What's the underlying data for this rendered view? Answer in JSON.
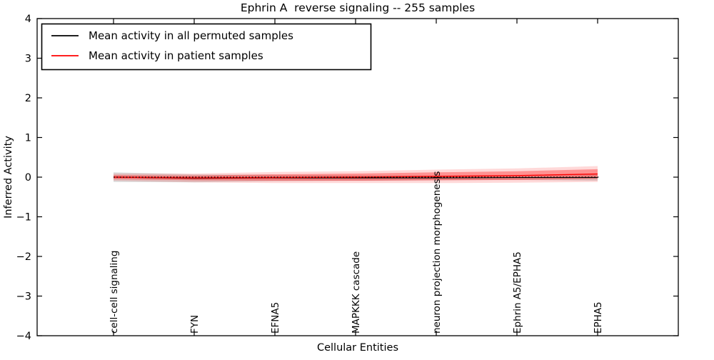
{
  "figure": {
    "title": "Ephrin A  reverse signaling -- 255 samples",
    "xlabel": "Cellular Entities",
    "ylabel": "Inferred Activity"
  },
  "legend": {
    "position": "upper left",
    "entries": [
      {
        "label": "Mean activity in all permuted samples",
        "color": "#000000"
      },
      {
        "label": "Mean activity in patient samples",
        "color": "#ff0000"
      }
    ]
  },
  "chart_data": {
    "type": "line",
    "title": "Ephrin A  reverse signaling -- 255 samples",
    "xlabel": "Cellular Entities",
    "ylabel": "Inferred Activity",
    "ylim": [
      -4,
      4
    ],
    "yticks": [
      4,
      3,
      2,
      1,
      0,
      -1,
      -2,
      -3,
      -4
    ],
    "grid": false,
    "legend_position": "upper left",
    "categories": [
      "cell-cell signaling",
      "FYN",
      "EFNA5",
      "MAPKKK cascade",
      "neuron projection morphogenesis",
      "Ephrin A5/EPHA5",
      "EPHA5"
    ],
    "series": [
      {
        "name": "Mean activity in all permuted samples",
        "color": "#000000",
        "values": [
          0.0,
          -0.03,
          -0.02,
          -0.02,
          -0.02,
          -0.01,
          -0.01
        ],
        "std": [
          0.12,
          0.1,
          0.08,
          0.07,
          0.06,
          0.06,
          0.08
        ],
        "band_color": "#999999"
      },
      {
        "name": "Mean activity in patient samples",
        "color": "#ff0000",
        "values": [
          0.0,
          -0.02,
          -0.01,
          0.0,
          0.02,
          0.04,
          0.08
        ],
        "std": [
          0.05,
          0.06,
          0.08,
          0.09,
          0.1,
          0.11,
          0.12
        ],
        "std_outer": [
          0.09,
          0.11,
          0.14,
          0.15,
          0.17,
          0.18,
          0.2
        ],
        "band_color": "#ff0000"
      }
    ],
    "reference_line": {
      "y": 0,
      "style": "dotted",
      "color": "#000000"
    }
  }
}
